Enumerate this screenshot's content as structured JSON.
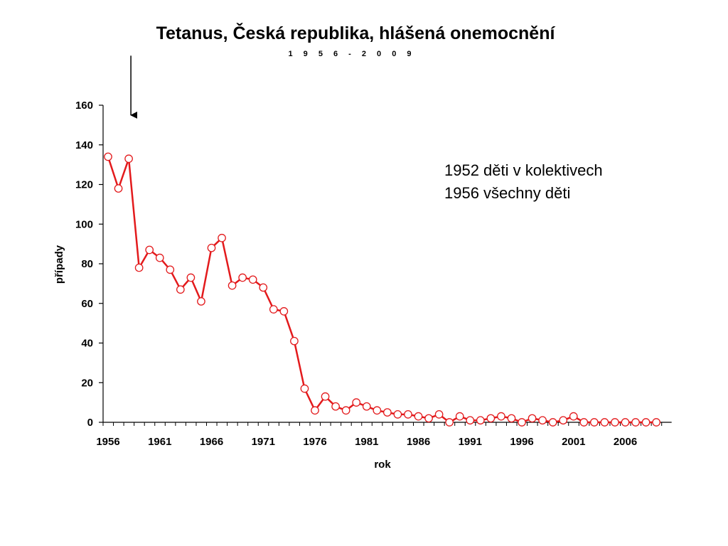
{
  "chart_data": {
    "type": "line",
    "title": "Tetanus, Česká republika, hlášená onemocnění",
    "subtitle": "1 9 5 6 - 2 0 0 9",
    "xlabel": "rok",
    "ylabel": "případy",
    "xlim": [
      1956,
      2010
    ],
    "ylim": [
      0,
      160
    ],
    "y_ticks": [
      "0",
      "20",
      "40",
      "60",
      "80",
      "100",
      "120",
      "140",
      "160"
    ],
    "x_ticks": [
      "1956",
      "1961",
      "1966",
      "1971",
      "1976",
      "1981",
      "1986",
      "1991",
      "1996",
      "2001",
      "2006"
    ],
    "grid": false,
    "legend": "none",
    "series_color": "#e31a1c",
    "marker_fill": "#ffffff",
    "series": [
      {
        "x": [
          1956,
          1957,
          1958,
          1959,
          1960,
          1961,
          1962,
          1963,
          1964,
          1965,
          1966,
          1967,
          1968,
          1969,
          1970,
          1971,
          1972,
          1973,
          1974,
          1975,
          1976,
          1977,
          1978,
          1979,
          1980,
          1981,
          1982,
          1983,
          1984,
          1985,
          1986,
          1987,
          1988,
          1989,
          1990,
          1991,
          1992,
          1993,
          1994,
          1995,
          1996,
          1997,
          1998,
          1999,
          2000,
          2001,
          2002,
          2003,
          2004,
          2005,
          2006,
          2007,
          2008,
          2009
        ],
        "values": [
          134,
          118,
          133,
          78,
          87,
          83,
          77,
          67,
          73,
          61,
          88,
          93,
          69,
          73,
          72,
          68,
          57,
          56,
          41,
          17,
          6,
          13,
          8,
          6,
          10,
          8,
          6,
          5,
          4,
          4,
          3,
          2,
          4,
          0,
          3,
          1,
          1,
          2,
          3,
          2,
          0,
          2,
          1,
          0,
          1,
          3,
          0,
          0,
          0,
          0,
          0,
          0,
          0,
          0
        ]
      }
    ],
    "annotations": [
      {
        "id": "marker_arrow",
        "type": "arrow",
        "x": 1958,
        "y_from": 185,
        "y_to": 155
      },
      {
        "id": "note_line1",
        "type": "text",
        "text": "1952 děti v kolektivech"
      },
      {
        "id": "note_line2",
        "type": "text",
        "text": "1956 všechny děti"
      }
    ]
  }
}
